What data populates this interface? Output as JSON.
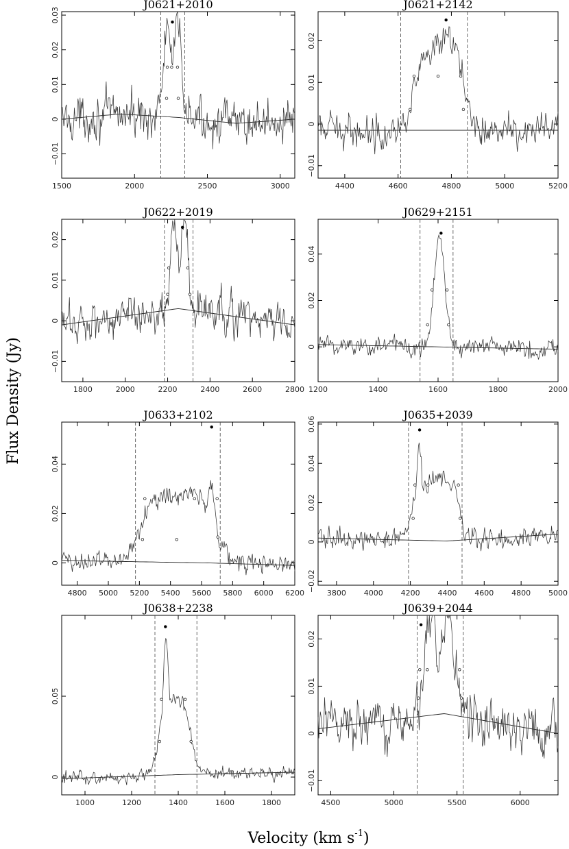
{
  "figure": {
    "xlabel": "Velocity (km s",
    "xlabel_sup": "-1",
    "xlabel_end": ")",
    "ylabel": "Flux Density (Jy)"
  },
  "chart_data": [
    {
      "type": "line",
      "title": "J0621+2010",
      "xlim": [
        1500,
        3100
      ],
      "ylim": [
        -0.017,
        0.031
      ],
      "xticks": [
        1500,
        2000,
        2500,
        3000
      ],
      "yticks": [
        -0.01,
        0,
        0.01,
        0.02,
        0.03
      ],
      "ytick_labels": [
        "−0.01",
        "0",
        "0.01",
        "0.02",
        "0.03"
      ],
      "bounds": [
        2180,
        2345
      ],
      "peak_v": 2260,
      "line_c": 2262,
      "line_w": 85,
      "line_shape": "twin",
      "noise": 0.0055,
      "baseline": [
        [
          1500,
          0.0
        ],
        [
          1900,
          0.0015
        ],
        [
          2300,
          0.0005
        ],
        [
          2700,
          -0.0012
        ],
        [
          3100,
          0.0
        ]
      ],
      "markers": [
        {
          "v": 2225,
          "y": 0.015
        },
        {
          "v": 2220,
          "y": 0.006
        },
        {
          "v": 2295,
          "y": 0.015
        },
        {
          "v": 2300,
          "y": 0.006
        },
        {
          "v": 2255,
          "y": 0.015
        },
        {
          "v": 2260,
          "y": 0.028,
          "peak": true
        }
      ]
    },
    {
      "type": "line",
      "title": "J0621+2142",
      "xlim": [
        4300,
        5200
      ],
      "ylim": [
        -0.013,
        0.027
      ],
      "xticks": [
        4400,
        4600,
        4800,
        5000,
        5200
      ],
      "yticks": [
        -0.01,
        0,
        0.01,
        0.02
      ],
      "ytick_labels": [
        "−0.01",
        "0",
        "0.01",
        "0.02"
      ],
      "bounds": [
        4610,
        4860
      ],
      "peak_v": 4780,
      "line_c": 4745,
      "line_w": 100,
      "line_shape": "rise",
      "noise": 0.0035,
      "baseline": [
        [
          4300,
          -0.0015
        ],
        [
          5200,
          -0.0015
        ]
      ],
      "markers": [
        {
          "v": 4645,
          "y": 0.0035
        },
        {
          "v": 4660,
          "y": 0.0115
        },
        {
          "v": 4750,
          "y": 0.0115
        },
        {
          "v": 4835,
          "y": 0.0115
        },
        {
          "v": 4845,
          "y": 0.0035
        },
        {
          "v": 4780,
          "y": 0.025,
          "peak": true
        }
      ]
    },
    {
      "type": "line",
      "title": "J0622+2019",
      "xlim": [
        1700,
        2800
      ],
      "ylim": [
        -0.015,
        0.025
      ],
      "xticks": [
        1800,
        2000,
        2200,
        2400,
        2600,
        2800
      ],
      "yticks": [
        -0.01,
        0,
        0.01,
        0.02
      ],
      "ytick_labels": [
        "−0.01",
        "0",
        "0.01",
        "0.02"
      ],
      "bounds": [
        2185,
        2320
      ],
      "peak_v": 2270,
      "line_c": 2255,
      "line_w": 55,
      "line_shape": "twin",
      "noise": 0.0045,
      "baseline": [
        [
          1700,
          -0.001
        ],
        [
          2250,
          0.003
        ],
        [
          2800,
          -0.001
        ]
      ],
      "markers": [
        {
          "v": 2200,
          "y": 0.0065
        },
        {
          "v": 2205,
          "y": 0.013
        },
        {
          "v": 2295,
          "y": 0.013
        },
        {
          "v": 2305,
          "y": 0.0065
        },
        {
          "v": 2270,
          "y": 0.023,
          "peak": true
        }
      ]
    },
    {
      "type": "line",
      "title": "J0629+2151",
      "xlim": [
        1200,
        2000
      ],
      "ylim": [
        -0.015,
        0.055
      ],
      "xticks": [
        1200,
        1400,
        1600,
        1800,
        2000
      ],
      "yticks": [
        0,
        0.02,
        0.04
      ],
      "ytick_labels": [
        "0",
        "0.02",
        "0.04"
      ],
      "bounds": [
        1540,
        1650
      ],
      "peak_v": 1610,
      "line_c": 1605,
      "line_w": 40,
      "line_shape": "gauss",
      "noise": 0.004,
      "baseline": [
        [
          1200,
          0.001
        ],
        [
          2000,
          -0.001
        ]
      ],
      "markers": [
        {
          "v": 1565,
          "y": 0.0095
        },
        {
          "v": 1580,
          "y": 0.0245
        },
        {
          "v": 1630,
          "y": 0.0245
        },
        {
          "v": 1635,
          "y": 0.0095
        },
        {
          "v": 1610,
          "y": 0.049,
          "peak": true
        }
      ]
    },
    {
      "type": "line",
      "title": "J0633+2102",
      "xlim": [
        4700,
        6200
      ],
      "ylim": [
        -0.009,
        0.057
      ],
      "xticks": [
        4800,
        5000,
        5200,
        5400,
        5600,
        5800,
        6000,
        6200
      ],
      "yticks": [
        0,
        0.02,
        0.04
      ],
      "ytick_labels": [
        "0",
        "0.02",
        "0.04"
      ],
      "bounds": [
        5175,
        5720
      ],
      "peak_v": 5665,
      "line_c": 5440,
      "line_w": 240,
      "line_shape": "horn",
      "noise": 0.0035,
      "baseline": [
        [
          4700,
          0.001
        ],
        [
          5650,
          0.0
        ],
        [
          6200,
          -0.001
        ]
      ],
      "markers": [
        {
          "v": 5220,
          "y": 0.0095
        },
        {
          "v": 5235,
          "y": 0.026
        },
        {
          "v": 5440,
          "y": 0.0095
        },
        {
          "v": 5555,
          "y": 0.026
        },
        {
          "v": 5700,
          "y": 0.026
        },
        {
          "v": 5705,
          "y": 0.0105
        },
        {
          "v": 5665,
          "y": 0.055,
          "peak": true
        }
      ]
    },
    {
      "type": "line",
      "title": "J0635+2039",
      "xlim": [
        3700,
        5000
      ],
      "ylim": [
        -0.022,
        0.061
      ],
      "xticks": [
        3800,
        4000,
        4200,
        4400,
        4600,
        4800,
        5000
      ],
      "yticks": [
        -0.02,
        0,
        0.02,
        0.04,
        0.06
      ],
      "ytick_labels": [
        "−0.02",
        "0",
        "0.02",
        "0.04",
        "0.06"
      ],
      "bounds": [
        4190,
        4480
      ],
      "peak_v": 4250,
      "line_c": 4335,
      "line_w": 125,
      "line_shape": "hornL",
      "noise": 0.0045,
      "baseline": [
        [
          3700,
          0.002
        ],
        [
          4400,
          0.0005
        ],
        [
          5000,
          0.004
        ]
      ],
      "markers": [
        {
          "v": 4215,
          "y": 0.012
        },
        {
          "v": 4225,
          "y": 0.029
        },
        {
          "v": 4295,
          "y": 0.029
        },
        {
          "v": 4460,
          "y": 0.029
        },
        {
          "v": 4470,
          "y": 0.012
        },
        {
          "v": 4250,
          "y": 0.057,
          "peak": true
        }
      ]
    },
    {
      "type": "line",
      "title": "J0638+2238",
      "xlim": [
        900,
        1900
      ],
      "ylim": [
        -0.011,
        0.1
      ],
      "xticks": [
        1000,
        1200,
        1400,
        1600,
        1800
      ],
      "yticks": [
        0,
        0.05
      ],
      "ytick_labels": [
        "0",
        "0.05"
      ],
      "bounds": [
        1300,
        1480
      ],
      "peak_v": 1345,
      "line_c": 1385,
      "line_w": 70,
      "line_shape": "lopsided",
      "noise": 0.0035,
      "baseline": [
        [
          900,
          -0.001
        ],
        [
          1400,
          0.0015
        ],
        [
          1900,
          0.003
        ]
      ],
      "markers": [
        {
          "v": 1320,
          "y": 0.022
        },
        {
          "v": 1328,
          "y": 0.048
        },
        {
          "v": 1430,
          "y": 0.048
        },
        {
          "v": 1455,
          "y": 0.022
        },
        {
          "v": 1345,
          "y": 0.093,
          "peak": true
        }
      ]
    },
    {
      "type": "line",
      "title": "J0639+2044",
      "xlim": [
        4400,
        6300
      ],
      "ylim": [
        -0.013,
        0.025
      ],
      "xticks": [
        4500,
        5000,
        5500,
        6000
      ],
      "yticks": [
        -0.01,
        0,
        0.01,
        0.02
      ],
      "ytick_labels": [
        "−0.01",
        "0",
        "0.01",
        "0.02"
      ],
      "bounds": [
        5185,
        5550
      ],
      "peak_v": 5215,
      "line_c": 5365,
      "line_w": 160,
      "line_shape": "twin",
      "noise": 0.0045,
      "baseline": [
        [
          4400,
          0.001
        ],
        [
          5400,
          0.0042
        ],
        [
          6300,
          0.0
        ]
      ],
      "markers": [
        {
          "v": 5195,
          "y": 0.0075
        },
        {
          "v": 5205,
          "y": 0.0135
        },
        {
          "v": 5265,
          "y": 0.0135
        },
        {
          "v": 5520,
          "y": 0.0135
        },
        {
          "v": 5535,
          "y": 0.0075
        },
        {
          "v": 5215,
          "y": 0.023,
          "peak": true
        }
      ]
    }
  ]
}
